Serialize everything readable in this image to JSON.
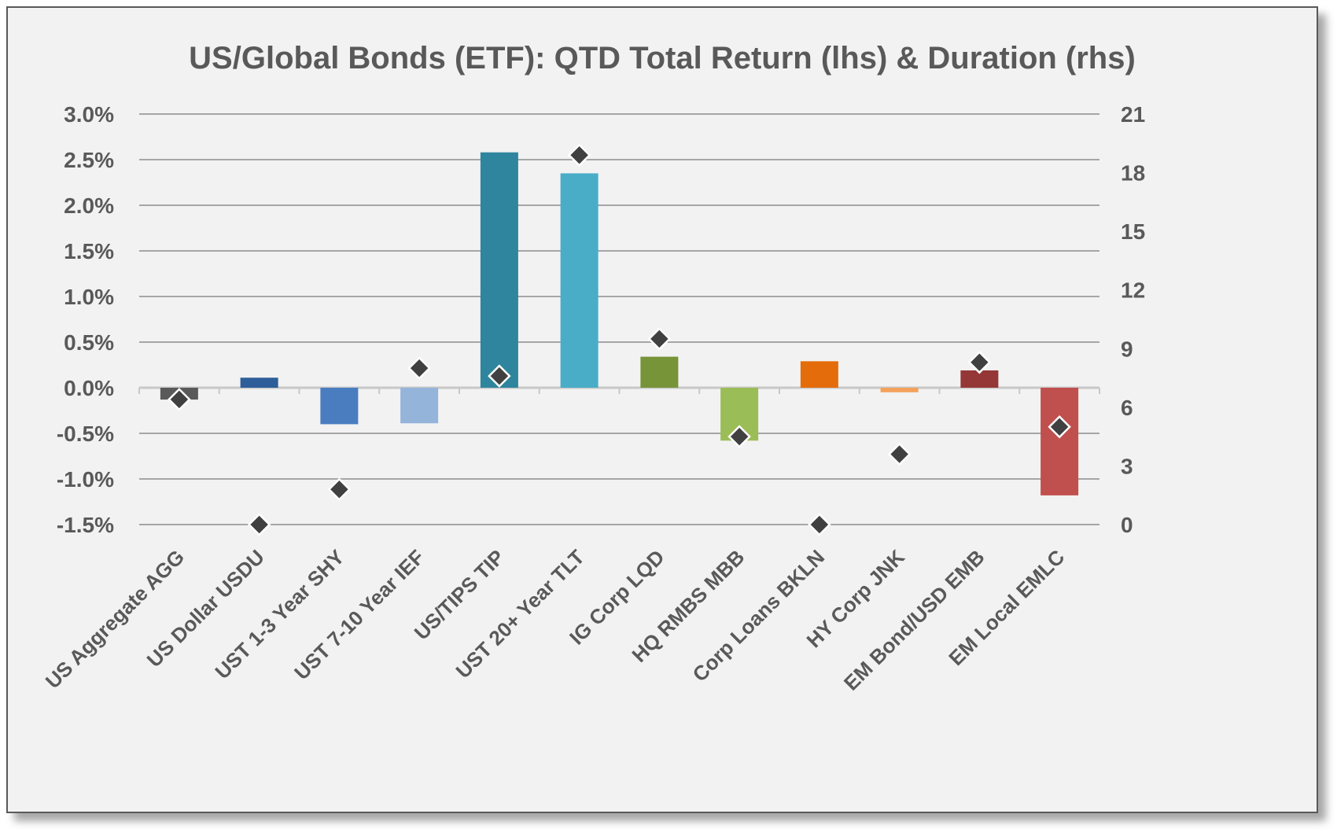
{
  "chart_data": {
    "type": "bar",
    "title": "US/Global Bonds (ETF): QTD Total Return (lhs) & Duration (rhs)",
    "categories": [
      "US Aggregate AGG",
      "US Dollar USDU",
      "UST 1-3 Year SHY",
      "UST 7-10 Year IEF",
      "US/TIPS TIP",
      "UST 20+ Year TLT",
      "IG Corp LQD",
      "HQ RMBS MBB",
      "Corp Loans BKLN",
      "HY Corp JNK",
      "EM Bond/USD EMB",
      "EM Local EMLC"
    ],
    "series": [
      {
        "type": "bar",
        "axis": "left",
        "values": [
          -0.13,
          0.11,
          -0.4,
          -0.39,
          2.58,
          2.35,
          0.34,
          -0.58,
          0.29,
          -0.05,
          0.19,
          -1.18
        ],
        "colors": [
          "#595959",
          "#2e5e99",
          "#4a7dc0",
          "#94b4da",
          "#2e859d",
          "#4aadc8",
          "#779438",
          "#9bbd57",
          "#e46c0a",
          "#f4a15c",
          "#953736",
          "#c0504d"
        ]
      },
      {
        "type": "scatter",
        "axis": "right",
        "marker": "diamond",
        "color": "#404040",
        "values": [
          6.4,
          0.0,
          1.8,
          8.0,
          7.6,
          18.9,
          9.5,
          4.5,
          0.0,
          3.6,
          8.3,
          5.0
        ]
      }
    ],
    "y_left": {
      "ylim": [
        -1.5,
        3.0
      ],
      "ticks": [
        3.0,
        2.5,
        2.0,
        1.5,
        1.0,
        0.5,
        0.0,
        -0.5,
        -1.0,
        -1.5
      ],
      "tick_labels": [
        "3.0%",
        "2.5%",
        "2.0%",
        "1.5%",
        "1.0%",
        "0.5%",
        "0.0%",
        "-0.5%",
        "-1.0%",
        "-1.5%"
      ]
    },
    "y_right": {
      "ylim": [
        0,
        21
      ],
      "ticks": [
        21,
        18,
        15,
        12,
        9,
        6,
        3,
        0
      ],
      "tick_labels": [
        "21",
        "18",
        "15",
        "12",
        "9",
        "6",
        "3",
        "0"
      ]
    },
    "grid": true,
    "legend": "none"
  }
}
